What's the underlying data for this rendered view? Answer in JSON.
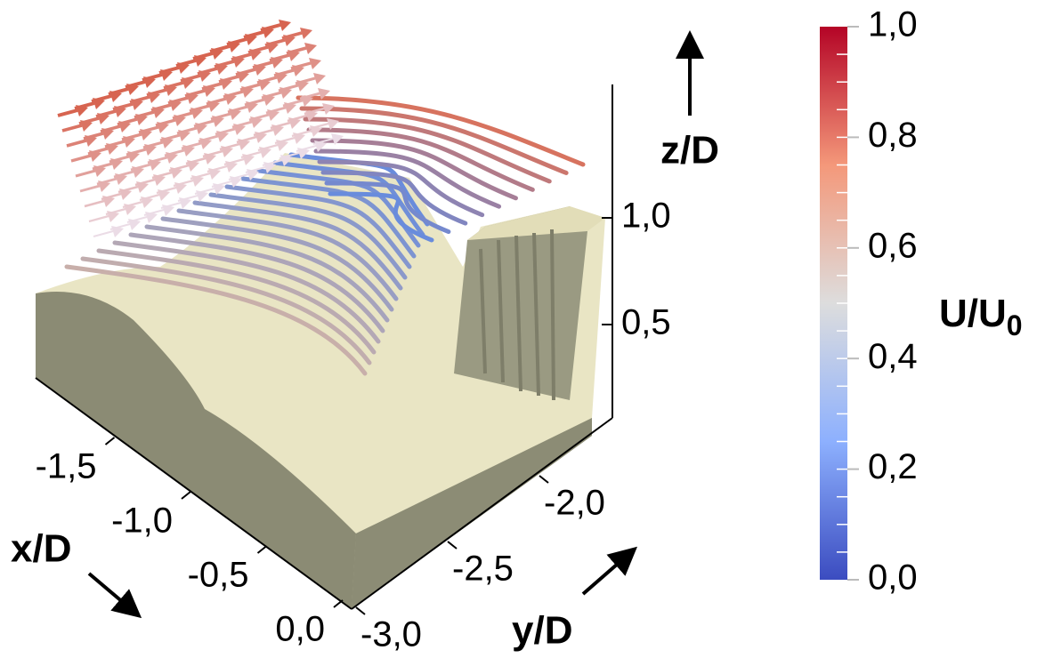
{
  "chart_data": {
    "type": "3d-flow",
    "xlabel": "x/D",
    "ylabel": "y/D",
    "zlabel": "z/D",
    "xticks": [
      {
        "value": -1.5,
        "label": "-1,5"
      },
      {
        "value": -1.0,
        "label": "-1,0"
      },
      {
        "value": -0.5,
        "label": "-0,5"
      },
      {
        "value": 0.0,
        "label": "0,0"
      }
    ],
    "yticks": [
      {
        "value": -3.0,
        "label": "-3,0"
      },
      {
        "value": -2.5,
        "label": "-2,5"
      },
      {
        "value": -2.0,
        "label": "-2,0"
      }
    ],
    "zticks": [
      {
        "value": 0.5,
        "label": "0,5"
      },
      {
        "value": 1.0,
        "label": "1,0"
      }
    ],
    "colorbar": {
      "label": "U/U",
      "label_sub": "0",
      "clim": [
        0,
        1
      ],
      "ticks": [
        {
          "value": 0.0,
          "label": "0,0"
        },
        {
          "value": 0.2,
          "label": "0,2"
        },
        {
          "value": 0.4,
          "label": "0,4"
        },
        {
          "value": 0.6,
          "label": "0,6"
        },
        {
          "value": 0.8,
          "label": "0,8"
        },
        {
          "value": 1.0,
          "label": "1,0"
        }
      ]
    }
  }
}
